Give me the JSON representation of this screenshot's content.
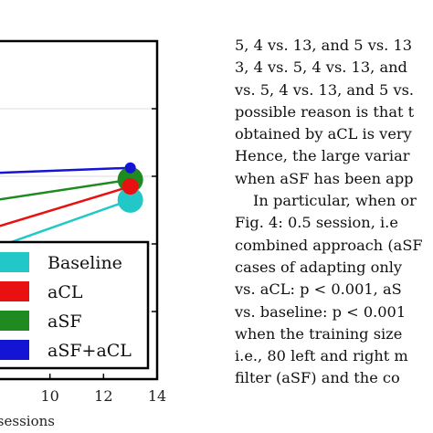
{
  "chart_data": {
    "type": "line",
    "xlabel": "t sessions",
    "x_ticks": [
      "10",
      "12",
      "14"
    ],
    "xlim": [
      8.0,
      14
    ],
    "ylim": [
      0,
      1
    ],
    "legend": {
      "placement": "bottom-right",
      "entries": [
        "Baseline",
        "aCL",
        "aSF",
        "aSF+aCL"
      ]
    },
    "series": [
      {
        "name": "Baseline",
        "color": "#22c8c8",
        "x": [
          8.0,
          13
        ],
        "y": [
          0.39,
          0.53
        ]
      },
      {
        "name": "aCL",
        "color": "#e81010",
        "x": [
          8.0,
          13
        ],
        "y": [
          0.45,
          0.57
        ]
      },
      {
        "name": "aSF",
        "color": "#1f8a1f",
        "x": [
          8.0,
          13
        ],
        "y": [
          0.53,
          0.59
        ]
      },
      {
        "name": "aSF+aCL",
        "color": "#1414d4",
        "x": [
          8.0,
          13
        ],
        "y": [
          0.61,
          0.625
        ]
      }
    ],
    "marker_sizes_at_x13": [
      14,
      9,
      14,
      6
    ]
  },
  "text_column": {
    "lines": [
      "5, 4 vs. 13, and 5 vs. 13",
      "3, 4 vs. 5, 4 vs. 13, and",
      "vs. 5, 4 vs. 13, and 5 vs.",
      "possible reason is that t",
      "obtained by aCL is very",
      "Hence, the large variar",
      "when aSF has been app",
      "In particular, when or",
      "Fig. 4: 0.5 session, i.e",
      "combined approach (aSF",
      "cases of adapting only",
      "vs. aCL: p < 0.001, aS",
      "vs. baseline: p < 0.001",
      "when the training size",
      "i.e., 80 left and right m",
      "filter (aSF) and the co"
    ]
  }
}
